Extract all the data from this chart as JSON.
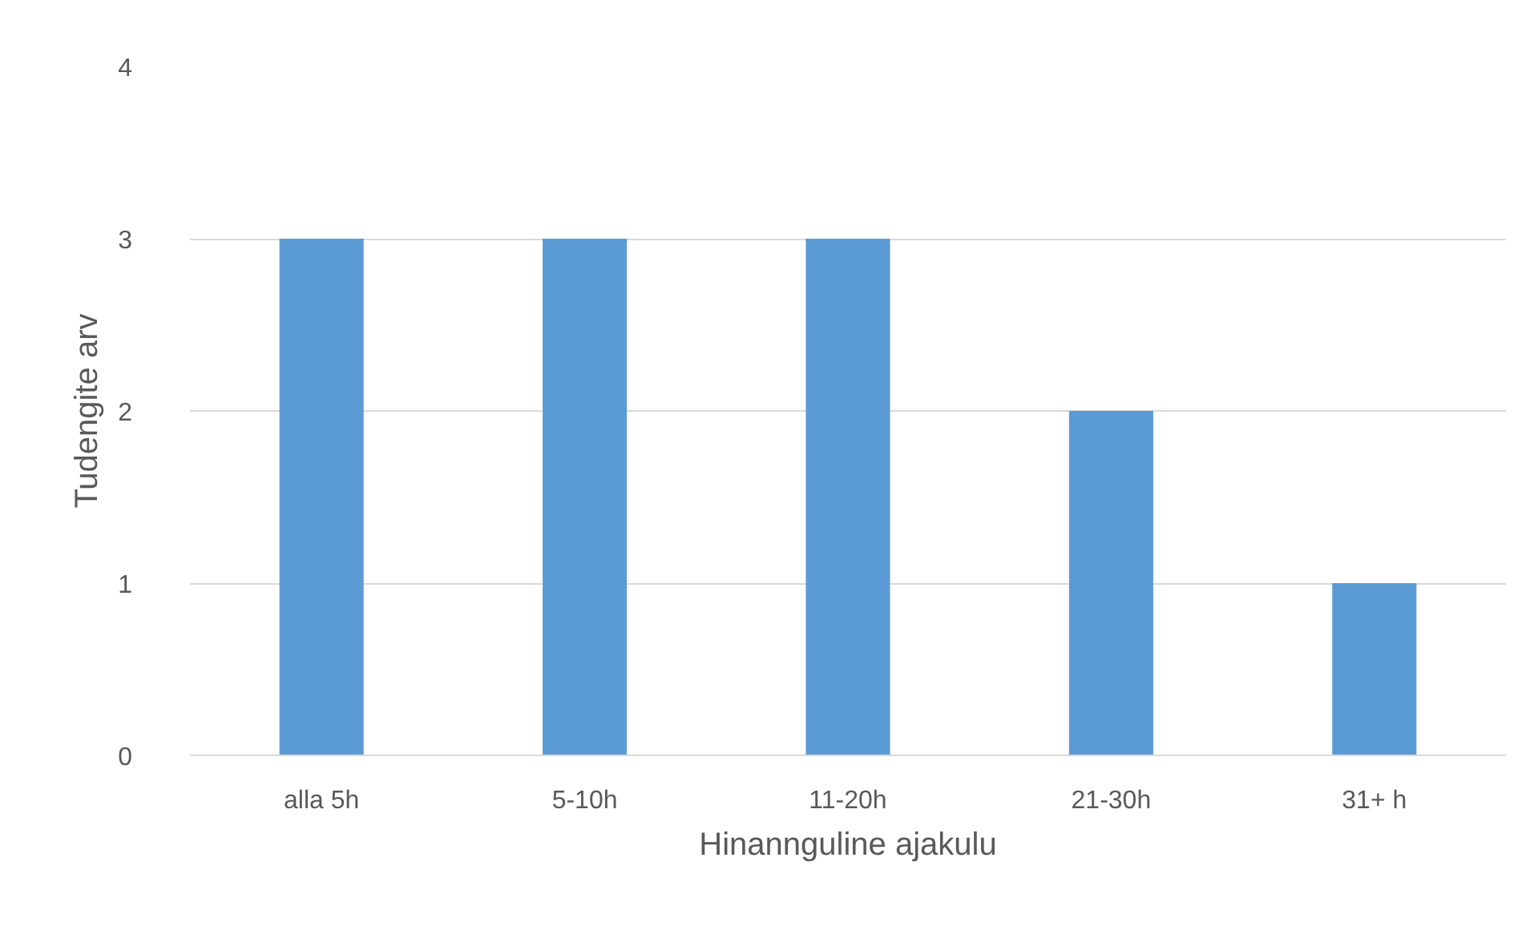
{
  "chart_data": {
    "type": "bar",
    "xlabel": "Hinannguline ajakulu",
    "ylabel": "Tudengite arv",
    "categories": [
      "alla 5h",
      "5-10h",
      "11-20h",
      "21-30h",
      "31+ h"
    ],
    "values": [
      3,
      3,
      3,
      2,
      1
    ],
    "color": "#5b9bd5",
    "ylim": [
      0,
      4
    ],
    "yticks": [
      0,
      1,
      2,
      3,
      4
    ],
    "grid": "y"
  }
}
